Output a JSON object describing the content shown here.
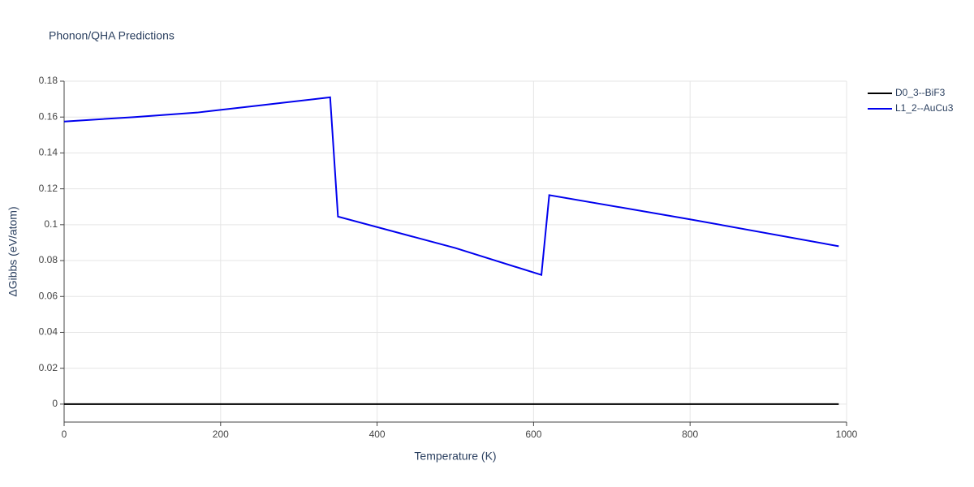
{
  "chart_data": {
    "type": "line",
    "title": "Phonon/QHA Predictions",
    "x_label": "Temperature (K)",
    "y_label": "ΔGibbs (eV/atom)",
    "xlim": [
      0,
      1000
    ],
    "xticks": [
      0,
      200,
      400,
      600,
      800,
      1000
    ],
    "ylim": [
      -0.01,
      0.18
    ],
    "yticks": [
      0,
      0.02,
      0.04,
      0.06,
      0.08,
      0.1,
      0.12,
      0.14,
      0.16,
      0.18
    ],
    "grid": true,
    "legend": "right",
    "series": [
      {
        "name": "D0_3--BiF3",
        "color": "#000000",
        "x": [
          0,
          990
        ],
        "values": [
          0,
          0
        ]
      },
      {
        "name": "L1_2--AuCu3",
        "color": "#0000ee",
        "x": [
          0,
          90,
          170,
          250,
          340,
          350,
          500,
          610,
          620,
          800,
          990
        ],
        "values": [
          0.1575,
          0.16,
          0.1625,
          0.1665,
          0.171,
          0.1045,
          0.087,
          0.072,
          0.1165,
          0.103,
          0.088
        ]
      }
    ]
  }
}
